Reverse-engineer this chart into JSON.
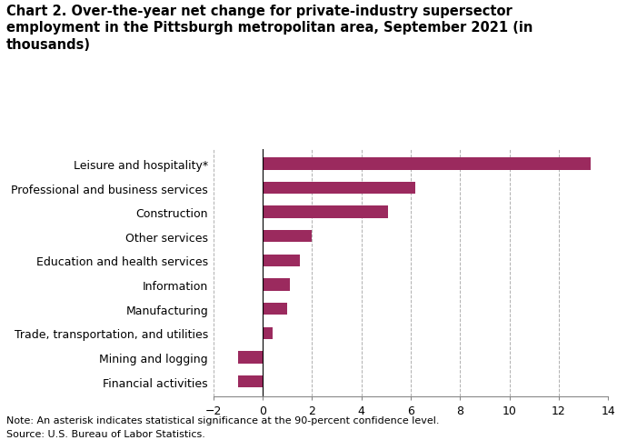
{
  "categories": [
    "Financial activities",
    "Mining and logging",
    "Trade, transportation, and utilities",
    "Manufacturing",
    "Information",
    "Education and health services",
    "Other services",
    "Construction",
    "Professional and business services",
    "Leisure and hospitality*"
  ],
  "values": [
    -1.0,
    -1.0,
    0.4,
    1.0,
    1.1,
    1.5,
    2.0,
    5.1,
    6.2,
    13.3
  ],
  "bar_color": "#9b2a5e",
  "title_line1": "Chart 2. Over-the-year net change for private-industry supersector",
  "title_line2": "employment in the Pittsburgh metropolitan area, September 2021 (in",
  "title_line3": "thousands)",
  "xlim": [
    -2,
    14
  ],
  "xticks": [
    -2,
    0,
    2,
    4,
    6,
    8,
    10,
    12,
    14
  ],
  "note_line1": "Note: An asterisk indicates statistical significance at the 90-percent confidence level.",
  "note_line2": "Source: U.S. Bureau of Labor Statistics.",
  "background_color": "#ffffff",
  "grid_color": "#b0b0b0",
  "title_fontsize": 10.5,
  "label_fontsize": 9,
  "tick_fontsize": 9,
  "note_fontsize": 8
}
